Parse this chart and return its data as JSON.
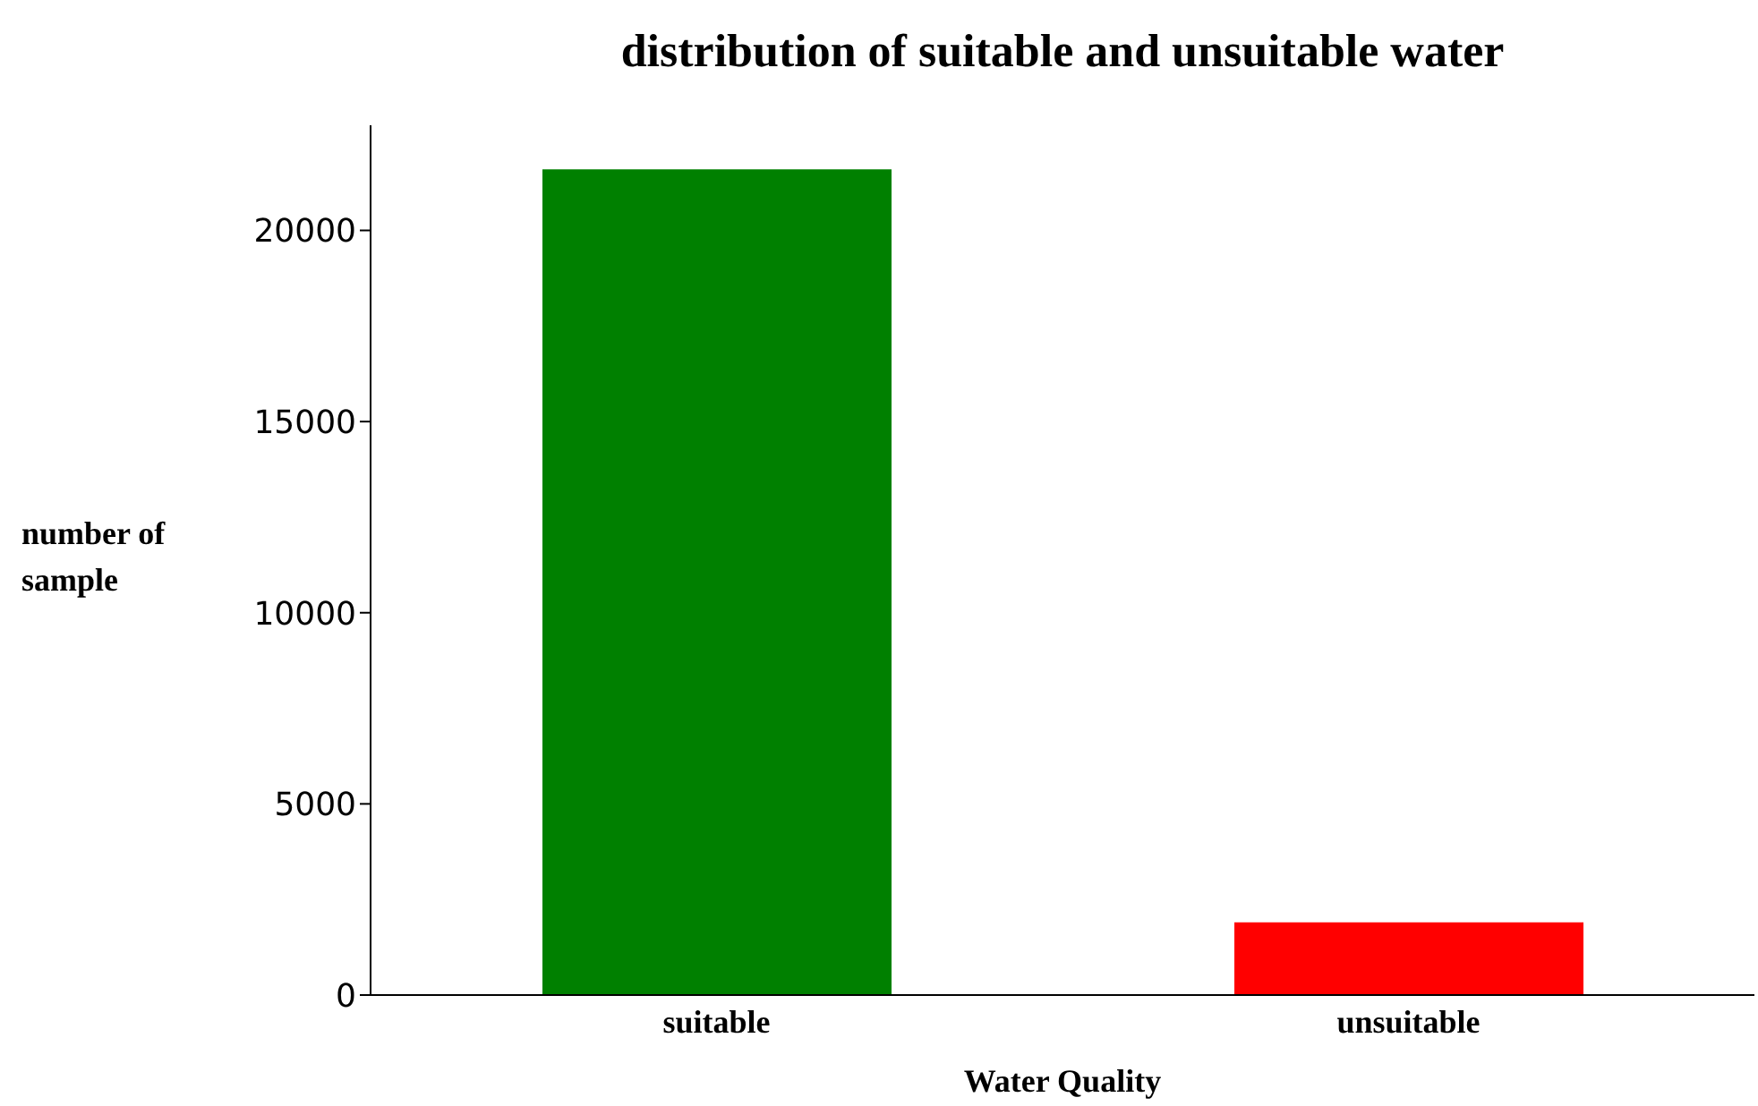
{
  "chart_data": {
    "type": "bar",
    "title": "distribution of suitable and unsuitable water",
    "xlabel": "Water Quality",
    "ylabel": "number of sample",
    "categories": [
      "suitable",
      "unsuitable"
    ],
    "values": [
      21600,
      1900
    ],
    "colors": [
      "#008000",
      "#ff0000"
    ],
    "ylim": [
      0,
      22750
    ],
    "yticks": [
      0,
      5000,
      10000,
      15000,
      20000
    ],
    "grid": false,
    "legend": false
  }
}
